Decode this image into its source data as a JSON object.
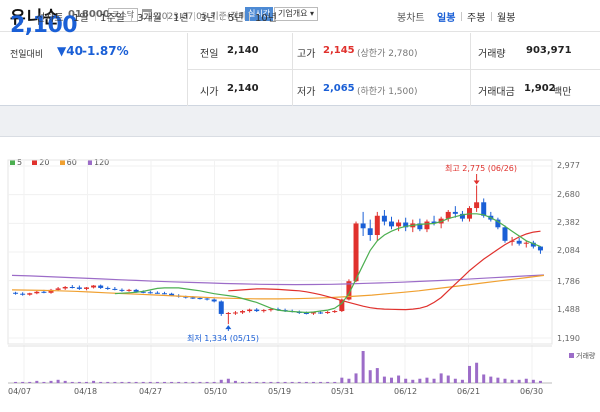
{
  "header": {
    "name": "유니슨",
    "code": "018000",
    "market": "코스닥",
    "date": "2023.07.05 기준(장마감)",
    "live": "실시간",
    "overview": "기업개요 ▾"
  },
  "summary": {
    "price": "2,100",
    "change_label": "전일대비",
    "change": "▼40",
    "change_pct": "-1.87%",
    "prev_close_label": "전일",
    "prev_close": "2,140",
    "high_label": "고가",
    "high": "2,145",
    "upper_limit": "(상한가 2,780)",
    "volume_label": "거래량",
    "volume": "903,971",
    "open_label": "시가",
    "open": "2,140",
    "low_label": "저가",
    "low": "2,065",
    "lower_limit": "(하한가 1,500)",
    "amount_label": "거래대금",
    "amount": "1,902",
    "amount_unit": "백만"
  },
  "tabs": {
    "line_chart": "선차트",
    "periods": [
      "1일",
      "1주일",
      "3개월",
      "1년",
      "3년",
      "5년",
      "10년"
    ],
    "candle_chart": "봉차트",
    "candle_periods": [
      "일봉",
      "주봉",
      "월봉"
    ],
    "active_candle": "일봉"
  },
  "colors": {
    "up": "#e0312d",
    "down": "#1a5fd6",
    "accent": "#1a5fd6"
  },
  "chart_data": {
    "type": "candlestick",
    "legend": [
      {
        "name": "5",
        "color": "#4caf50"
      },
      {
        "name": "20",
        "color": "#e0312d"
      },
      {
        "name": "60",
        "color": "#f0a030"
      },
      {
        "name": "120",
        "color": "#9c6cc8"
      }
    ],
    "y_ticks": [
      "2,977",
      "2,680",
      "2,382",
      "2,084",
      "1,786",
      "1,488",
      "1,190"
    ],
    "ylim": [
      1190,
      2977
    ],
    "x_ticks": [
      "04/07",
      "04/18",
      "04/27",
      "05/10",
      "05/19",
      "05/31",
      "06/12",
      "06/21",
      "06/30"
    ],
    "annotation_high": "최고 2,775 (06/26)",
    "annotation_low": "최저 1,334 (05/15)",
    "volume_label": "거래량",
    "candles": [
      [
        1660,
        1670,
        1640,
        1650
      ],
      [
        1650,
        1665,
        1630,
        1640
      ],
      [
        1640,
        1660,
        1630,
        1655
      ],
      [
        1655,
        1680,
        1645,
        1670
      ],
      [
        1670,
        1690,
        1655,
        1660
      ],
      [
        1660,
        1700,
        1650,
        1690
      ],
      [
        1690,
        1720,
        1680,
        1705
      ],
      [
        1705,
        1730,
        1690,
        1720
      ],
      [
        1720,
        1740,
        1705,
        1715
      ],
      [
        1715,
        1735,
        1690,
        1700
      ],
      [
        1700,
        1720,
        1685,
        1715
      ],
      [
        1715,
        1740,
        1705,
        1735
      ],
      [
        1735,
        1745,
        1700,
        1710
      ],
      [
        1710,
        1725,
        1690,
        1700
      ],
      [
        1700,
        1720,
        1685,
        1690
      ],
      [
        1690,
        1705,
        1670,
        1680
      ],
      [
        1680,
        1700,
        1670,
        1690
      ],
      [
        1690,
        1700,
        1660,
        1670
      ],
      [
        1670,
        1685,
        1655,
        1665
      ],
      [
        1665,
        1680,
        1650,
        1660
      ],
      [
        1660,
        1675,
        1650,
        1655
      ],
      [
        1655,
        1670,
        1645,
        1650
      ],
      [
        1650,
        1660,
        1625,
        1630
      ],
      [
        1630,
        1645,
        1610,
        1620
      ],
      [
        1620,
        1630,
        1600,
        1610
      ],
      [
        1610,
        1625,
        1595,
        1605
      ],
      [
        1605,
        1615,
        1590,
        1600
      ],
      [
        1600,
        1610,
        1580,
        1590
      ],
      [
        1590,
        1600,
        1560,
        1570
      ],
      [
        1570,
        1580,
        1420,
        1440
      ],
      [
        1440,
        1460,
        1334,
        1450
      ],
      [
        1450,
        1470,
        1430,
        1455
      ],
      [
        1455,
        1480,
        1440,
        1470
      ],
      [
        1470,
        1495,
        1455,
        1485
      ],
      [
        1485,
        1500,
        1460,
        1470
      ],
      [
        1470,
        1490,
        1455,
        1480
      ],
      [
        1480,
        1500,
        1465,
        1490
      ],
      [
        1490,
        1505,
        1470,
        1480
      ],
      [
        1480,
        1495,
        1460,
        1470
      ],
      [
        1470,
        1485,
        1455,
        1460
      ],
      [
        1460,
        1475,
        1440,
        1450
      ],
      [
        1450,
        1465,
        1435,
        1445
      ],
      [
        1445,
        1460,
        1430,
        1455
      ],
      [
        1455,
        1470,
        1440,
        1450
      ],
      [
        1450,
        1470,
        1440,
        1460
      ],
      [
        1460,
        1480,
        1450,
        1470
      ],
      [
        1470,
        1600,
        1460,
        1590
      ],
      [
        1590,
        1800,
        1580,
        1780
      ],
      [
        1780,
        2400,
        1770,
        2380
      ],
      [
        2380,
        2500,
        2250,
        2330
      ],
      [
        2330,
        2420,
        2200,
        2260
      ],
      [
        2260,
        2500,
        2200,
        2460
      ],
      [
        2460,
        2520,
        2360,
        2400
      ],
      [
        2400,
        2450,
        2320,
        2350
      ],
      [
        2350,
        2420,
        2300,
        2390
      ],
      [
        2390,
        2440,
        2300,
        2340
      ],
      [
        2340,
        2420,
        2290,
        2380
      ],
      [
        2380,
        2430,
        2300,
        2320
      ],
      [
        2320,
        2420,
        2290,
        2400
      ],
      [
        2400,
        2460,
        2360,
        2380
      ],
      [
        2380,
        2450,
        2330,
        2430
      ],
      [
        2430,
        2520,
        2400,
        2500
      ],
      [
        2500,
        2560,
        2440,
        2480
      ],
      [
        2480,
        2510,
        2400,
        2430
      ],
      [
        2430,
        2560,
        2400,
        2540
      ],
      [
        2540,
        2775,
        2500,
        2600
      ],
      [
        2600,
        2640,
        2440,
        2460
      ],
      [
        2460,
        2500,
        2400,
        2420
      ],
      [
        2420,
        2440,
        2320,
        2340
      ],
      [
        2340,
        2360,
        2180,
        2200
      ],
      [
        2200,
        2240,
        2150,
        2200
      ],
      [
        2200,
        2230,
        2150,
        2170
      ],
      [
        2170,
        2200,
        2130,
        2180
      ],
      [
        2180,
        2200,
        2120,
        2140
      ],
      [
        2140,
        2145,
        2065,
        2100
      ]
    ],
    "ma5": [
      1650,
      1655,
      1660,
      1665,
      1675,
      1690,
      1705,
      1710,
      1712,
      1710,
      1700,
      1690,
      1680,
      1665,
      1650,
      1640,
      1630,
      1620,
      1600,
      1580,
      1560,
      1530,
      1500,
      1480,
      1470,
      1465,
      1460,
      1455,
      1460,
      1470,
      1480,
      1500,
      1550,
      1650,
      1800,
      1950,
      2100,
      2200,
      2260,
      2300,
      2330,
      2350,
      2360,
      2370,
      2375,
      2380,
      2400,
      2430,
      2450,
      2470,
      2480,
      2480,
      2470,
      2440,
      2400,
      2350,
      2300,
      2250,
      2200,
      2170,
      2140
    ],
    "ma20": [
      1680,
      1685,
      1690,
      1695,
      1700,
      1700,
      1698,
      1695,
      1690,
      1685,
      1680,
      1670,
      1655,
      1640,
      1620,
      1600,
      1580,
      1560,
      1540,
      1520,
      1505,
      1495,
      1490,
      1488,
      1486,
      1485,
      1490,
      1500,
      1520,
      1560,
      1610,
      1680,
      1750,
      1820,
      1890,
      1950,
      2010,
      2060,
      2110,
      2160,
      2200,
      2240,
      2270,
      2290,
      2300
    ],
    "ma60": [
      1690,
      1688,
      1685,
      1680,
      1675,
      1668,
      1660,
      1652,
      1645,
      1638,
      1630,
      1622,
      1615,
      1608,
      1602,
      1598,
      1596,
      1596,
      1598,
      1602,
      1608,
      1616,
      1625,
      1636,
      1650,
      1665,
      1680,
      1700,
      1720,
      1740,
      1760,
      1780,
      1800,
      1820,
      1840
    ],
    "ma120": [
      1840,
      1835,
      1828,
      1820,
      1812,
      1804,
      1796,
      1788,
      1780,
      1774,
      1768,
      1762,
      1756,
      1752,
      1748,
      1746,
      1745,
      1746,
      1748,
      1752,
      1758,
      1764,
      1770,
      1778,
      1786,
      1795,
      1805,
      1815,
      1825,
      1835,
      1845
    ],
    "volumes": [
      1,
      1,
      1,
      2,
      1,
      2,
      3,
      2,
      1,
      1,
      1,
      2,
      1,
      1,
      1,
      1,
      1,
      1,
      1,
      1,
      1,
      1,
      1,
      1,
      1,
      1,
      1,
      1,
      1,
      3,
      4,
      2,
      1,
      1,
      1,
      1,
      1,
      1,
      1,
      1,
      1,
      1,
      1,
      1,
      1,
      1,
      5,
      4,
      9,
      30,
      12,
      14,
      6,
      5,
      7,
      4,
      3,
      4,
      5,
      4,
      9,
      7,
      4,
      3,
      16,
      19,
      8,
      6,
      5,
      4,
      3,
      3,
      4,
      3,
      2
    ]
  }
}
